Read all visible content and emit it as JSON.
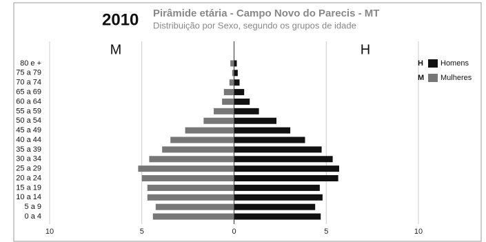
{
  "chart_data": {
    "type": "pyramid",
    "year": "2010",
    "title": "Pirâmide etária - Campo Novo do Parecis - MT",
    "subtitle": "Distribuição por Sexo, segundo os grupos de idade",
    "categories": [
      "0 a 4",
      "5 a 9",
      "10 a 14",
      "15 a 19",
      "20 a 24",
      "25 a 29",
      "30 a 34",
      "35 a 39",
      "40 a 44",
      "45 a 49",
      "50 a 54",
      "55 a 59",
      "60 a 64",
      "65 a 69",
      "70 a 74",
      "75 a 79",
      "80 e +"
    ],
    "series": [
      {
        "name": "Homens",
        "abbr": "H",
        "color": "#111111",
        "side": "right",
        "values": [
          4.7,
          4.4,
          4.8,
          4.65,
          5.65,
          5.7,
          5.35,
          4.75,
          3.85,
          3.05,
          2.3,
          1.35,
          0.85,
          0.55,
          0.3,
          0.2,
          0.15
        ]
      },
      {
        "name": "Mulheres",
        "abbr": "M",
        "color": "#777777",
        "side": "left",
        "values": [
          4.4,
          4.25,
          4.7,
          4.7,
          5.0,
          5.2,
          4.6,
          3.9,
          3.45,
          2.65,
          1.65,
          1.1,
          0.65,
          0.55,
          0.25,
          0.1,
          0.2
        ]
      }
    ],
    "xlim": [
      -10,
      10
    ],
    "xticks": [
      {
        "value": -10,
        "label": "10"
      },
      {
        "value": -5,
        "label": "5"
      },
      0,
      5,
      10
    ],
    "grid": true
  }
}
